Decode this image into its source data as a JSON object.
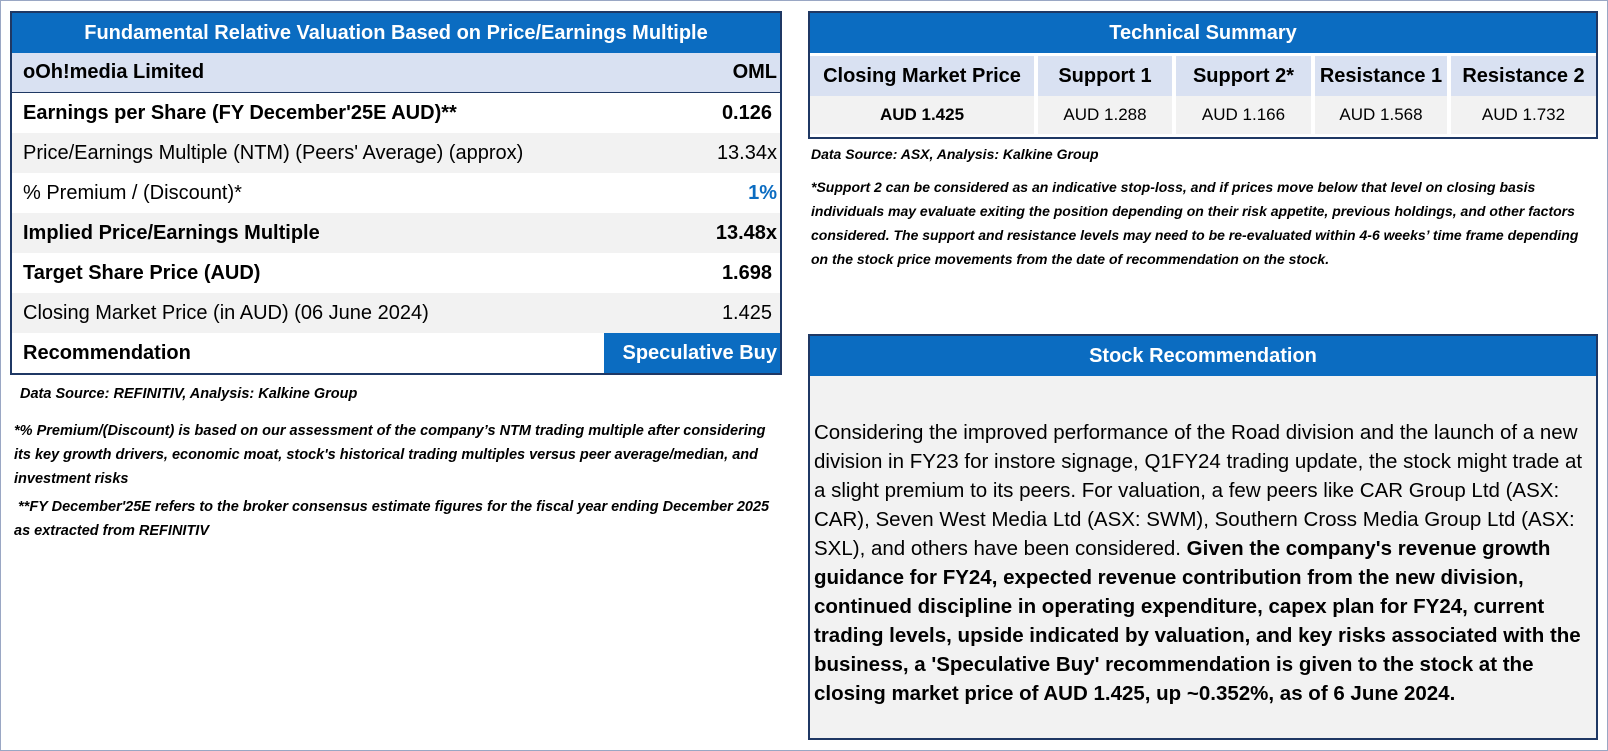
{
  "valuation": {
    "title": "Fundamental Relative Valuation Based on Price/Earnings Multiple",
    "company": "oOh!media Limited",
    "ticker": "OML",
    "rows": [
      {
        "label": "Earnings per Share (FY December'25E AUD)**",
        "value": "0.126"
      },
      {
        "label": "Price/Earnings Multiple (NTM)  (Peers' Average) (approx)",
        "value": "13.34x"
      },
      {
        "label": "% Premium / (Discount)*",
        "value": "1%"
      },
      {
        "label": "Implied Price/Earnings Multiple",
        "value": "13.48x"
      },
      {
        "label": "Target Share Price (AUD)",
        "value": "1.698"
      },
      {
        "label": "Closing Market Price (in AUD) (06 June 2024)",
        "value": "1.425"
      }
    ],
    "recommendation_label": "Recommendation",
    "recommendation_value": "Speculative Buy",
    "source": "Data Source: REFINITIV, Analysis: Kalkine Group",
    "note1": "*% Premium/(Discount) is based on our assessment of the company’s NTM trading multiple after considering its key growth drivers, economic moat, stock's historical trading multiples versus peer average/median, and investment risks",
    "note2": " **FY December'25E refers to the broker consensus estimate figures for the fiscal year ending December 2025  as extracted from REFINITIV"
  },
  "technical": {
    "title": "Technical Summary",
    "headers": [
      "Closing Market Price",
      "Support 1",
      "Support 2*",
      "Resistance 1",
      "Resistance 2"
    ],
    "values": [
      "AUD 1.425",
      "AUD 1.288",
      "AUD 1.166",
      "AUD 1.568",
      "AUD 1.732"
    ],
    "source": "Data Source: ASX, Analysis: Kalkine Group",
    "note": "*Support 2 can be considered as an indicative stop-loss, and if prices move below that level on closing basis individuals may evaluate exiting the position depending on their risk appetite, previous holdings, and other factors considered. The support and resistance levels may need to be re-evaluated within 4-6 weeks’ time frame depending on the stock price movements from the date of recommendation on the stock."
  },
  "recommendation": {
    "title": "Stock Recommendation",
    "text_regular": "Considering the improved performance of the Road division and the launch of a new division in FY23 for instore signage, Q1FY24 trading update, the stock might trade at a slight premium to its peers. For valuation, a few peers like CAR Group Ltd (ASX: CAR), Seven West Media Ltd (ASX: SWM), Southern Cross Media Group Ltd (ASX: SXL), and others have been considered. ",
    "text_bold": "Given the company's revenue growth guidance for FY24, expected revenue contribution from the new division, continued discipline in operating expenditure, capex plan for FY24, current trading levels, upside indicated by valuation, and key risks associated with the business, a 'Speculative Buy' recommendation is given to the stock at the closing market price of AUD 1.425, up ~0.352%, as of 6 June 2024."
  },
  "colors": {
    "header_blue": "#0b6cc1",
    "border_navy": "#1f3864",
    "light_blue": "#d9e1f2",
    "light_grey": "#f2f2f2"
  }
}
